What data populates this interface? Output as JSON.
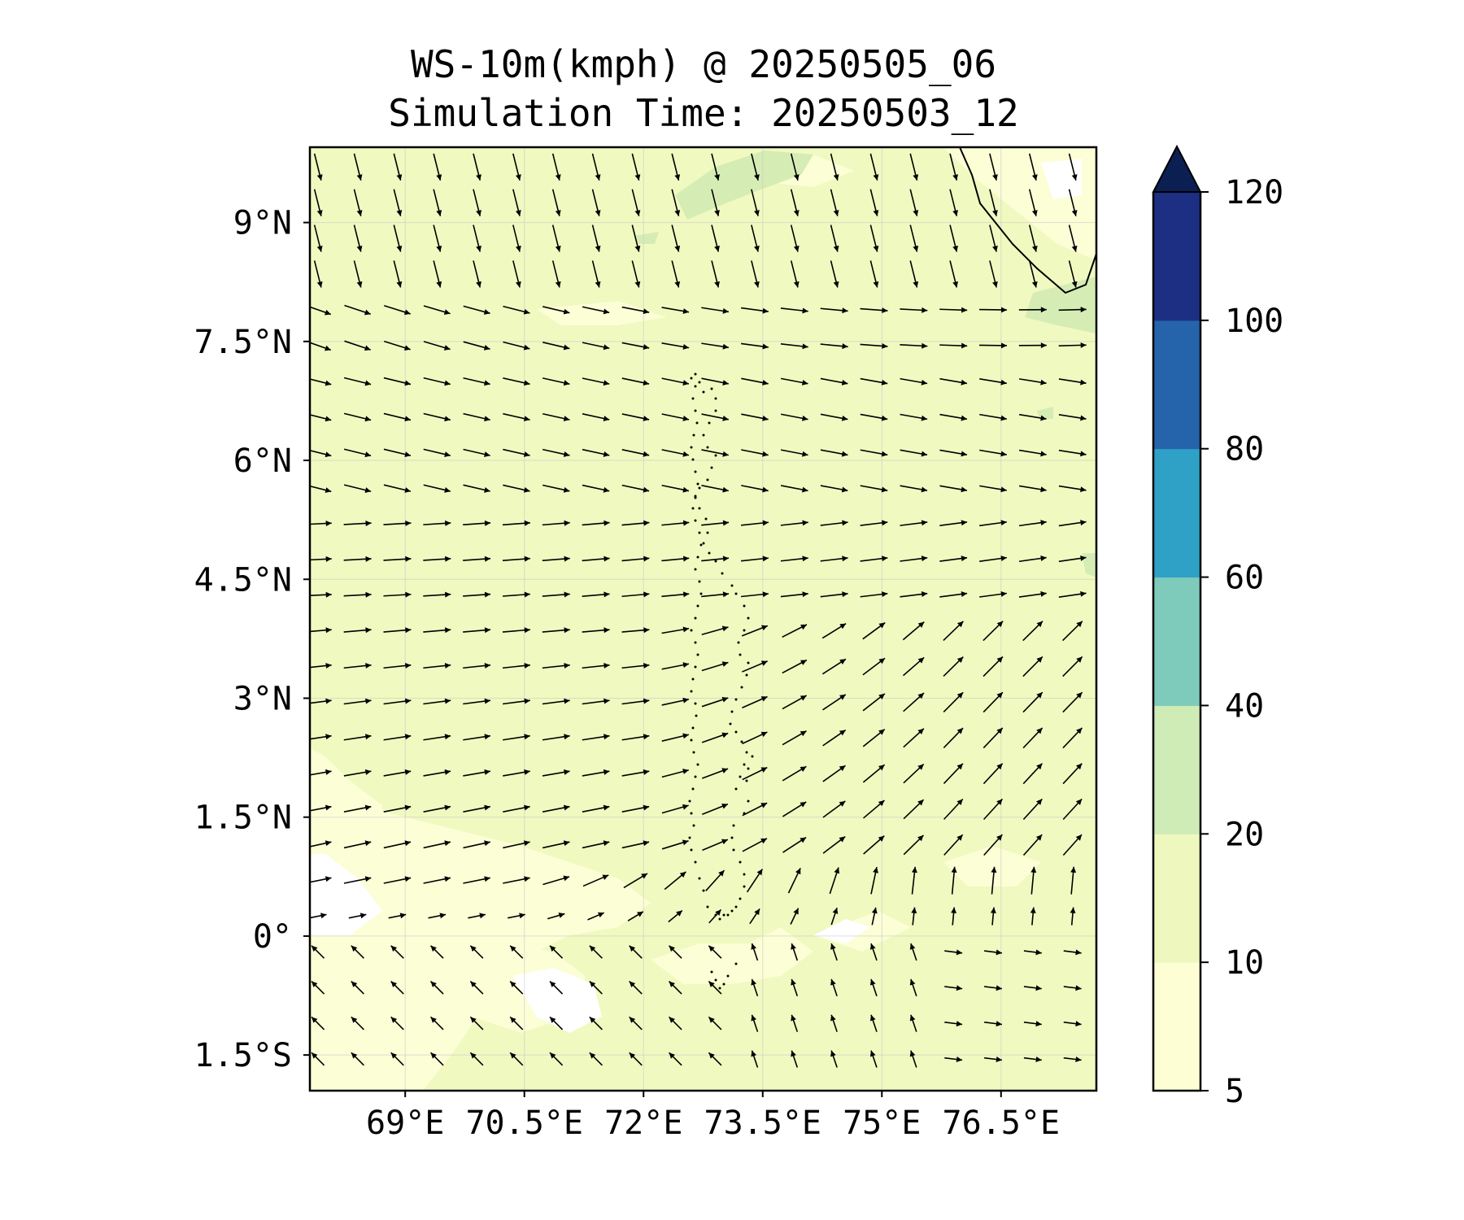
{
  "title": "WS-10m(kmph) @ 20250505_06",
  "subtitle": "Simulation Time: 20250503_12",
  "map": {
    "lon_range": [
      67.8,
      77.7
    ],
    "lat_range": [
      -1.95,
      9.95
    ],
    "lon_ticks": [
      {
        "value": 69,
        "label": "69°E"
      },
      {
        "value": 70.5,
        "label": "70.5°E"
      },
      {
        "value": 72,
        "label": "72°E"
      },
      {
        "value": 73.5,
        "label": "73.5°E"
      },
      {
        "value": 75,
        "label": "75°E"
      },
      {
        "value": 76.5,
        "label": "76.5°E"
      }
    ],
    "lat_ticks": [
      {
        "value": 9,
        "label": "9°N"
      },
      {
        "value": 7.5,
        "label": "7.5°N"
      },
      {
        "value": 6,
        "label": "6°N"
      },
      {
        "value": 4.5,
        "label": "4.5°N"
      },
      {
        "value": 3,
        "label": "3°N"
      },
      {
        "value": 1.5,
        "label": "1.5°N"
      },
      {
        "value": 0,
        "label": "0°"
      },
      {
        "value": -1.5,
        "label": "1.5°S"
      }
    ],
    "gridlines": true,
    "background_color": "#f0f9c0",
    "low_wind_color": "#fcfed6",
    "high_wind_color": "#d5edb5",
    "vector_color": "#000000",
    "coastline_color": "#000000"
  },
  "colorbar": {
    "levels": [
      5,
      10,
      20,
      40,
      60,
      80,
      100,
      120
    ],
    "labels": [
      "5",
      "10",
      "20",
      "40",
      "60",
      "80",
      "100",
      "120"
    ],
    "colors": [
      "#fdfed3",
      "#eef8be",
      "#cfebb6",
      "#7ecbbb",
      "#2fa1c6",
      "#2564ab",
      "#1c2f83"
    ],
    "extend_color": "#0b1f52",
    "extend": "max"
  },
  "chart_data": {
    "type": "quiver",
    "title": "WS-10m(kmph) @ 20250505_06",
    "subtitle": "Simulation Time: 20250503_12",
    "xlabel": "",
    "ylabel": "",
    "xlim": [
      67.8,
      77.7
    ],
    "ylim": [
      -1.95,
      9.95
    ],
    "field": "10 m wind speed (kmph) with direction vectors",
    "regimes": [
      {
        "region": "north of 8.5°N",
        "direction": "from north-northwest (southward arrows)"
      },
      {
        "region": "4°N to 8°N",
        "direction": "westerly (eastward arrows)"
      },
      {
        "region": "1°N to 3.5°N, east of 73°E",
        "direction": "southwesterly (northeastward arrows)"
      },
      {
        "region": "0° to 1°N, east of 75°E",
        "direction": "southerly (northward arrows)"
      },
      {
        "region": "south of 0°, west of 72°E",
        "direction": "southeasterly (northwestward arrows)"
      }
    ]
  }
}
